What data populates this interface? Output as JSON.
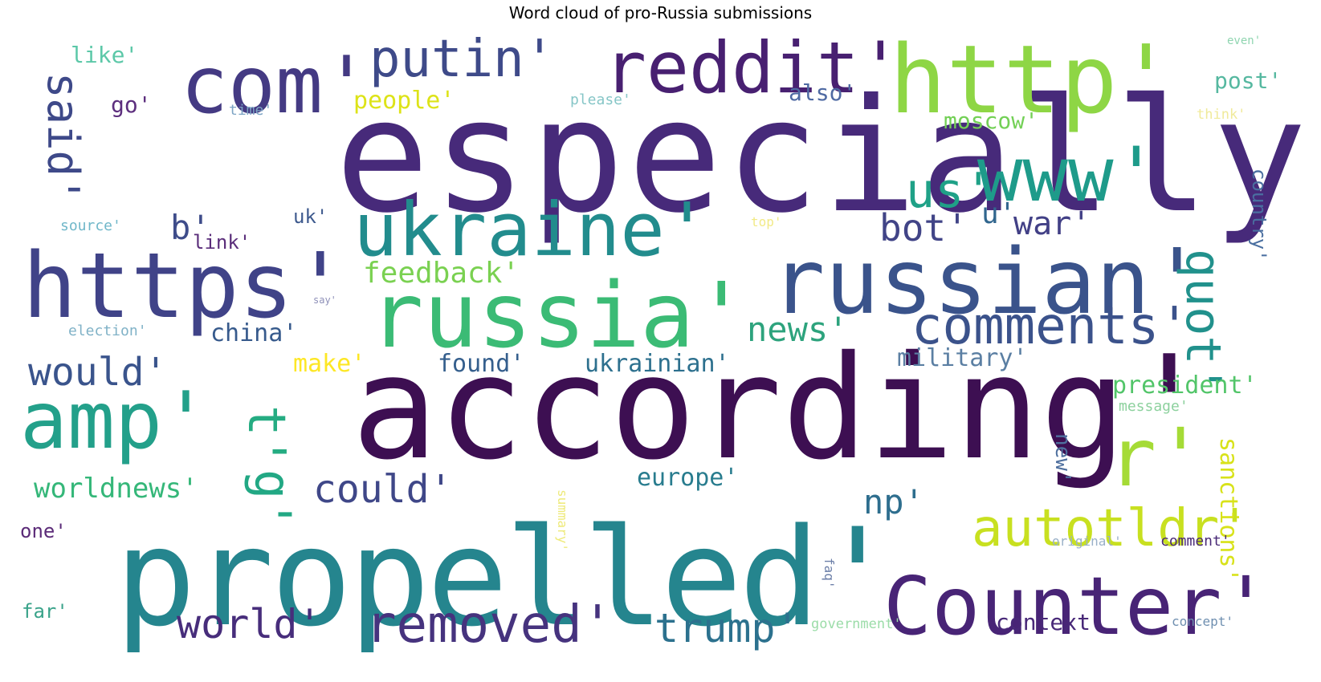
{
  "title": "Word cloud of pro-Russia submissions",
  "words": [
    {
      "text": "especially'",
      "color": "#472a7a"
    },
    {
      "text": "according'",
      "color": "#3d0f52"
    },
    {
      "text": "propelled'",
      "color": "#25858e"
    },
    {
      "text": "http'",
      "color": "#8ed645"
    },
    {
      "text": "russia'",
      "color": "#3bbb75"
    },
    {
      "text": "https'",
      "color": "#404388"
    },
    {
      "text": "russian'",
      "color": "#3a538b"
    },
    {
      "text": "Counter'",
      "color": "#482476"
    },
    {
      "text": "com'",
      "color": "#443a83"
    },
    {
      "text": "reddit'",
      "color": "#482071"
    },
    {
      "text": "www'",
      "color": "#1e9b8a"
    },
    {
      "text": "ukraine'",
      "color": "#228c8d"
    },
    {
      "text": "amp'",
      "color": "#23a08a"
    },
    {
      "text": "putin'",
      "color": "#3e4a89"
    },
    {
      "text": "r'",
      "color": "#a5db36"
    },
    {
      "text": "comments'",
      "color": "#3b528b"
    },
    {
      "text": "removed'",
      "color": "#46337e"
    },
    {
      "text": "autotldr'",
      "color": "#c8e020"
    },
    {
      "text": "world'",
      "color": "#472d7b"
    },
    {
      "text": "trump'",
      "color": "#2c718e"
    },
    {
      "text": "us'",
      "color": "#1fa187"
    },
    {
      "text": "t'",
      "color": "#25ac82"
    },
    {
      "text": "quot'",
      "color": "#21918c"
    },
    {
      "text": "said'",
      "color": "#3e4989"
    },
    {
      "text": "g'",
      "color": "#22a884"
    },
    {
      "text": "could'",
      "color": "#3f4788"
    },
    {
      "text": "bot'",
      "color": "#414487"
    },
    {
      "text": "war'",
      "color": "#424086"
    },
    {
      "text": "would'",
      "color": "#3a548c"
    },
    {
      "text": "news'",
      "color": "#2da37d"
    },
    {
      "text": "np'",
      "color": "#2e6e8e"
    },
    {
      "text": "b'",
      "color": "#3e4c8a"
    },
    {
      "text": "u'",
      "color": "#31668e"
    },
    {
      "text": "worldnews'",
      "color": "#35b779"
    },
    {
      "text": "feedback'",
      "color": "#7ad151"
    },
    {
      "text": "sanctions'",
      "color": "#d8e219"
    },
    {
      "text": "military'",
      "color": "#5b7fa3"
    },
    {
      "text": "president'",
      "color": "#52c569"
    },
    {
      "text": "context'",
      "color": "#482878"
    },
    {
      "text": "ukrainian'",
      "color": "#2d708e"
    },
    {
      "text": "found'",
      "color": "#355f8d"
    },
    {
      "text": "europe'",
      "color": "#287c8e"
    },
    {
      "text": "china'",
      "color": "#375a8c"
    },
    {
      "text": "moscow'",
      "color": "#73d056"
    },
    {
      "text": "people'",
      "color": "#dde318"
    },
    {
      "text": "also'",
      "color": "#4f6aa3"
    },
    {
      "text": "post'",
      "color": "#56b8a0"
    },
    {
      "text": "like'",
      "color": "#5cc8a8"
    },
    {
      "text": "make'",
      "color": "#fde725"
    },
    {
      "text": "country'",
      "color": "#4a6fa0"
    },
    {
      "text": "new'",
      "color": "#4e6f9e"
    },
    {
      "text": "go'",
      "color": "#5d2f7e"
    },
    {
      "text": "link'",
      "color": "#5a2d7a"
    },
    {
      "text": "uk'",
      "color": "#3e5a8e"
    },
    {
      "text": "one'",
      "color": "#5b2b78"
    },
    {
      "text": "far'",
      "color": "#3aa38a"
    },
    {
      "text": "comment'",
      "color": "#4a2a77"
    },
    {
      "text": "message'",
      "color": "#8dd19e"
    },
    {
      "text": "source'",
      "color": "#70b7c9"
    },
    {
      "text": "election'",
      "color": "#80b2c7"
    },
    {
      "text": "time'",
      "color": "#7da4c4"
    },
    {
      "text": "please'",
      "color": "#86c6c7"
    },
    {
      "text": "think'",
      "color": "#f0ea9a"
    },
    {
      "text": "even'",
      "color": "#8fd5b0"
    },
    {
      "text": "top'",
      "color": "#f2ea86"
    },
    {
      "text": "say'",
      "color": "#8e90b8"
    },
    {
      "text": "summary'",
      "color": "#eeea7a"
    },
    {
      "text": "faq'",
      "color": "#6c7fa8"
    },
    {
      "text": "original'",
      "color": "#9ab0c8"
    },
    {
      "text": "government'",
      "color": "#9bdca8"
    },
    {
      "text": "concept'",
      "color": "#6f8fb0"
    }
  ]
}
